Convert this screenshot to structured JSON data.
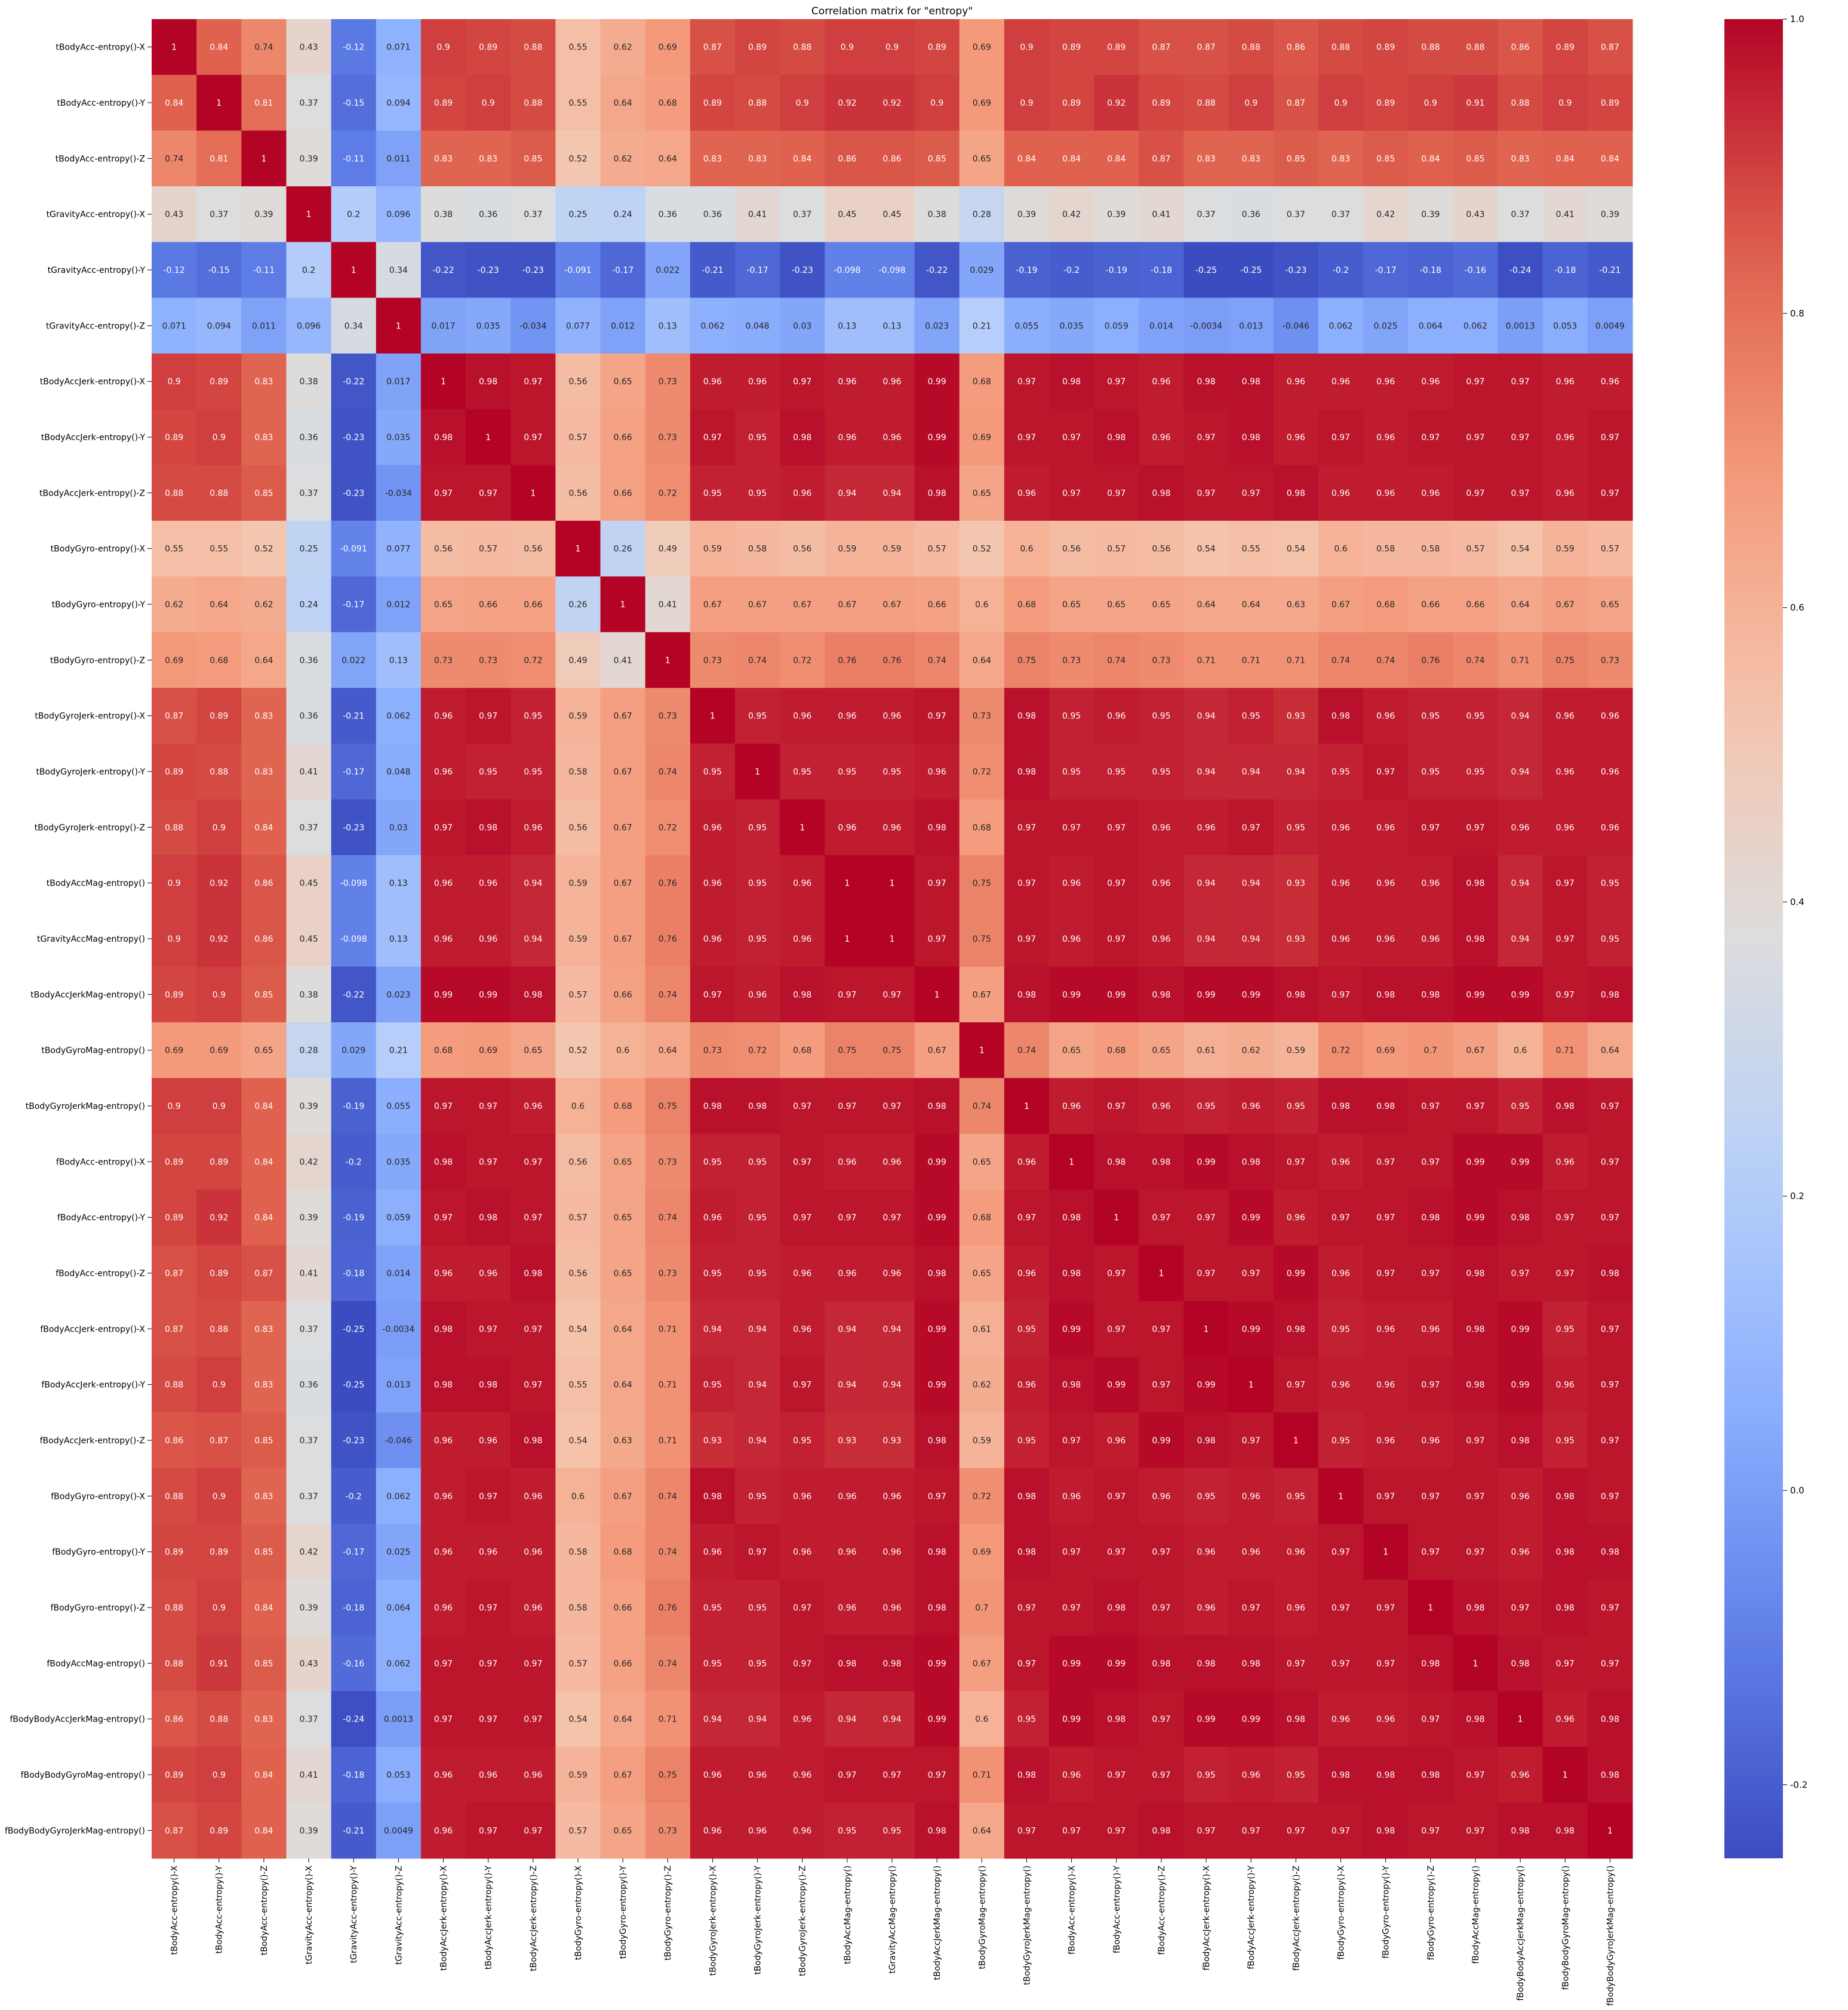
{
  "chart_data": {
    "type": "heatmap",
    "title": "Correlation matrix for \"entropy\"",
    "xlabel": "",
    "ylabel": "",
    "colormap": "coolwarm",
    "vmin": -0.25,
    "vmax": 1.0,
    "colorbar_ticks": [
      -0.2,
      0.0,
      0.2,
      0.4,
      0.6,
      0.8,
      1.0
    ],
    "labels": [
      "tBodyAcc-entropy()-X",
      "tBodyAcc-entropy()-Y",
      "tBodyAcc-entropy()-Z",
      "tGravityAcc-entropy()-X",
      "tGravityAcc-entropy()-Y",
      "tGravityAcc-entropy()-Z",
      "tBodyAccJerk-entropy()-X",
      "tBodyAccJerk-entropy()-Y",
      "tBodyAccJerk-entropy()-Z",
      "tBodyGyro-entropy()-X",
      "tBodyGyro-entropy()-Y",
      "tBodyGyro-entropy()-Z",
      "tBodyGyroJerk-entropy()-X",
      "tBodyGyroJerk-entropy()-Y",
      "tBodyGyroJerk-entropy()-Z",
      "tBodyAccMag-entropy()",
      "tGravityAccMag-entropy()",
      "tBodyAccJerkMag-entropy()",
      "tBodyGyroMag-entropy()",
      "tBodyGyroJerkMag-entropy()",
      "fBodyAcc-entropy()-X",
      "fBodyAcc-entropy()-Y",
      "fBodyAcc-entropy()-Z",
      "fBodyAccJerk-entropy()-X",
      "fBodyAccJerk-entropy()-Y",
      "fBodyAccJerk-entropy()-Z",
      "fBodyGyro-entropy()-X",
      "fBodyGyro-entropy()-Y",
      "fBodyGyro-entropy()-Z",
      "fBodyAccMag-entropy()",
      "fBodyBodyAccJerkMag-entropy()",
      "fBodyBodyGyroMag-entropy()",
      "fBodyBodyGyroJerkMag-entropy()"
    ],
    "matrix": [
      [
        "1",
        "0.84",
        "0.74",
        "0.43",
        "-0.12",
        "0.071",
        "0.9",
        "0.89",
        "0.88",
        "0.55",
        "0.62",
        "0.69",
        "0.87",
        "0.89",
        "0.88",
        "0.9",
        "0.9",
        "0.89",
        "0.69",
        "0.9",
        "0.89",
        "0.89",
        "0.87",
        "0.87",
        "0.88",
        "0.86",
        "0.88",
        "0.89",
        "0.88",
        "0.88",
        "0.86",
        "0.89",
        "0.87"
      ],
      [
        "0.84",
        "1",
        "0.81",
        "0.37",
        "-0.15",
        "0.094",
        "0.89",
        "0.9",
        "0.88",
        "0.55",
        "0.64",
        "0.68",
        "0.89",
        "0.88",
        "0.9",
        "0.92",
        "0.92",
        "0.9",
        "0.69",
        "0.9",
        "0.89",
        "0.92",
        "0.89",
        "0.88",
        "0.9",
        "0.87",
        "0.9",
        "0.89",
        "0.9",
        "0.91",
        "0.88",
        "0.9",
        "0.89"
      ],
      [
        "0.74",
        "0.81",
        "1",
        "0.39",
        "-0.11",
        "0.011",
        "0.83",
        "0.83",
        "0.85",
        "0.52",
        "0.62",
        "0.64",
        "0.83",
        "0.83",
        "0.84",
        "0.86",
        "0.86",
        "0.85",
        "0.65",
        "0.84",
        "0.84",
        "0.84",
        "0.87",
        "0.83",
        "0.83",
        "0.85",
        "0.83",
        "0.85",
        "0.84",
        "0.85",
        "0.83",
        "0.84",
        "0.84"
      ],
      [
        "0.43",
        "0.37",
        "0.39",
        "1",
        "0.2",
        "0.096",
        "0.38",
        "0.36",
        "0.37",
        "0.25",
        "0.24",
        "0.36",
        "0.36",
        "0.41",
        "0.37",
        "0.45",
        "0.45",
        "0.38",
        "0.28",
        "0.39",
        "0.42",
        "0.39",
        "0.41",
        "0.37",
        "0.36",
        "0.37",
        "0.37",
        "0.42",
        "0.39",
        "0.43",
        "0.37",
        "0.41",
        "0.39"
      ],
      [
        "-0.12",
        "-0.15",
        "-0.11",
        "0.2",
        "1",
        "0.34",
        "-0.22",
        "-0.23",
        "-0.23",
        "-0.091",
        "-0.17",
        "0.022",
        "-0.21",
        "-0.17",
        "-0.23",
        "-0.098",
        "-0.098",
        "-0.22",
        "0.029",
        "-0.19",
        "-0.2",
        "-0.19",
        "-0.18",
        "-0.25",
        "-0.25",
        "-0.23",
        "-0.2",
        "-0.17",
        "-0.18",
        "-0.16",
        "-0.24",
        "-0.18",
        "-0.21"
      ],
      [
        "0.071",
        "0.094",
        "0.011",
        "0.096",
        "0.34",
        "1",
        "0.017",
        "0.035",
        "-0.034",
        "0.077",
        "0.012",
        "0.13",
        "0.062",
        "0.048",
        "0.03",
        "0.13",
        "0.13",
        "0.023",
        "0.21",
        "0.055",
        "0.035",
        "0.059",
        "0.014",
        "-0.0034",
        "0.013",
        "-0.046",
        "0.062",
        "0.025",
        "0.064",
        "0.062",
        "0.0013",
        "0.053",
        "0.0049"
      ],
      [
        "0.9",
        "0.89",
        "0.83",
        "0.38",
        "-0.22",
        "0.017",
        "1",
        "0.98",
        "0.97",
        "0.56",
        "0.65",
        "0.73",
        "0.96",
        "0.96",
        "0.97",
        "0.96",
        "0.96",
        "0.99",
        "0.68",
        "0.97",
        "0.98",
        "0.97",
        "0.96",
        "0.98",
        "0.98",
        "0.96",
        "0.96",
        "0.96",
        "0.96",
        "0.97",
        "0.97",
        "0.96",
        "0.96"
      ],
      [
        "0.89",
        "0.9",
        "0.83",
        "0.36",
        "-0.23",
        "0.035",
        "0.98",
        "1",
        "0.97",
        "0.57",
        "0.66",
        "0.73",
        "0.97",
        "0.95",
        "0.98",
        "0.96",
        "0.96",
        "0.99",
        "0.69",
        "0.97",
        "0.97",
        "0.98",
        "0.96",
        "0.97",
        "0.98",
        "0.96",
        "0.97",
        "0.96",
        "0.97",
        "0.97",
        "0.97",
        "0.96",
        "0.97"
      ],
      [
        "0.88",
        "0.88",
        "0.85",
        "0.37",
        "-0.23",
        "-0.034",
        "0.97",
        "0.97",
        "1",
        "0.56",
        "0.66",
        "0.72",
        "0.95",
        "0.95",
        "0.96",
        "0.94",
        "0.94",
        "0.98",
        "0.65",
        "0.96",
        "0.97",
        "0.97",
        "0.98",
        "0.97",
        "0.97",
        "0.98",
        "0.96",
        "0.96",
        "0.96",
        "0.97",
        "0.97",
        "0.96",
        "0.97"
      ],
      [
        "0.55",
        "0.55",
        "0.52",
        "0.25",
        "-0.091",
        "0.077",
        "0.56",
        "0.57",
        "0.56",
        "1",
        "0.26",
        "0.49",
        "0.59",
        "0.58",
        "0.56",
        "0.59",
        "0.59",
        "0.57",
        "0.52",
        "0.6",
        "0.56",
        "0.57",
        "0.56",
        "0.54",
        "0.55",
        "0.54",
        "0.6",
        "0.58",
        "0.58",
        "0.57",
        "0.54",
        "0.59",
        "0.57"
      ],
      [
        "0.62",
        "0.64",
        "0.62",
        "0.24",
        "-0.17",
        "0.012",
        "0.65",
        "0.66",
        "0.66",
        "0.26",
        "1",
        "0.41",
        "0.67",
        "0.67",
        "0.67",
        "0.67",
        "0.67",
        "0.66",
        "0.6",
        "0.68",
        "0.65",
        "0.65",
        "0.65",
        "0.64",
        "0.64",
        "0.63",
        "0.67",
        "0.68",
        "0.66",
        "0.66",
        "0.64",
        "0.67",
        "0.65"
      ],
      [
        "0.69",
        "0.68",
        "0.64",
        "0.36",
        "0.022",
        "0.13",
        "0.73",
        "0.73",
        "0.72",
        "0.49",
        "0.41",
        "1",
        "0.73",
        "0.74",
        "0.72",
        "0.76",
        "0.76",
        "0.74",
        "0.64",
        "0.75",
        "0.73",
        "0.74",
        "0.73",
        "0.71",
        "0.71",
        "0.71",
        "0.74",
        "0.74",
        "0.76",
        "0.74",
        "0.71",
        "0.75",
        "0.73"
      ],
      [
        "0.87",
        "0.89",
        "0.83",
        "0.36",
        "-0.21",
        "0.062",
        "0.96",
        "0.97",
        "0.95",
        "0.59",
        "0.67",
        "0.73",
        "1",
        "0.95",
        "0.96",
        "0.96",
        "0.96",
        "0.97",
        "0.73",
        "0.98",
        "0.95",
        "0.96",
        "0.95",
        "0.94",
        "0.95",
        "0.93",
        "0.98",
        "0.96",
        "0.95",
        "0.95",
        "0.94",
        "0.96",
        "0.96"
      ],
      [
        "0.89",
        "0.88",
        "0.83",
        "0.41",
        "-0.17",
        "0.048",
        "0.96",
        "0.95",
        "0.95",
        "0.58",
        "0.67",
        "0.74",
        "0.95",
        "1",
        "0.95",
        "0.95",
        "0.95",
        "0.96",
        "0.72",
        "0.98",
        "0.95",
        "0.95",
        "0.95",
        "0.94",
        "0.94",
        "0.94",
        "0.95",
        "0.97",
        "0.95",
        "0.95",
        "0.94",
        "0.96",
        "0.96"
      ],
      [
        "0.88",
        "0.9",
        "0.84",
        "0.37",
        "-0.23",
        "0.03",
        "0.97",
        "0.98",
        "0.96",
        "0.56",
        "0.67",
        "0.72",
        "0.96",
        "0.95",
        "1",
        "0.96",
        "0.96",
        "0.98",
        "0.68",
        "0.97",
        "0.97",
        "0.97",
        "0.96",
        "0.96",
        "0.97",
        "0.95",
        "0.96",
        "0.96",
        "0.97",
        "0.97",
        "0.96",
        "0.96",
        "0.96"
      ],
      [
        "0.9",
        "0.92",
        "0.86",
        "0.45",
        "-0.098",
        "0.13",
        "0.96",
        "0.96",
        "0.94",
        "0.59",
        "0.67",
        "0.76",
        "0.96",
        "0.95",
        "0.96",
        "1",
        "1",
        "0.97",
        "0.75",
        "0.97",
        "0.96",
        "0.97",
        "0.96",
        "0.94",
        "0.94",
        "0.93",
        "0.96",
        "0.96",
        "0.96",
        "0.98",
        "0.94",
        "0.97",
        "0.95"
      ],
      [
        "0.9",
        "0.92",
        "0.86",
        "0.45",
        "-0.098",
        "0.13",
        "0.96",
        "0.96",
        "0.94",
        "0.59",
        "0.67",
        "0.76",
        "0.96",
        "0.95",
        "0.96",
        "1",
        "1",
        "0.97",
        "0.75",
        "0.97",
        "0.96",
        "0.97",
        "0.96",
        "0.94",
        "0.94",
        "0.93",
        "0.96",
        "0.96",
        "0.96",
        "0.98",
        "0.94",
        "0.97",
        "0.95"
      ],
      [
        "0.89",
        "0.9",
        "0.85",
        "0.38",
        "-0.22",
        "0.023",
        "0.99",
        "0.99",
        "0.98",
        "0.57",
        "0.66",
        "0.74",
        "0.97",
        "0.96",
        "0.98",
        "0.97",
        "0.97",
        "1",
        "0.67",
        "0.98",
        "0.99",
        "0.99",
        "0.98",
        "0.99",
        "0.99",
        "0.98",
        "0.97",
        "0.98",
        "0.98",
        "0.99",
        "0.99",
        "0.97",
        "0.98"
      ],
      [
        "0.69",
        "0.69",
        "0.65",
        "0.28",
        "0.029",
        "0.21",
        "0.68",
        "0.69",
        "0.65",
        "0.52",
        "0.6",
        "0.64",
        "0.73",
        "0.72",
        "0.68",
        "0.75",
        "0.75",
        "0.67",
        "1",
        "0.74",
        "0.65",
        "0.68",
        "0.65",
        "0.61",
        "0.62",
        "0.59",
        "0.72",
        "0.69",
        "0.7",
        "0.67",
        "0.6",
        "0.71",
        "0.64"
      ],
      [
        "0.9",
        "0.9",
        "0.84",
        "0.39",
        "-0.19",
        "0.055",
        "0.97",
        "0.97",
        "0.96",
        "0.6",
        "0.68",
        "0.75",
        "0.98",
        "0.98",
        "0.97",
        "0.97",
        "0.97",
        "0.98",
        "0.74",
        "1",
        "0.96",
        "0.97",
        "0.96",
        "0.95",
        "0.96",
        "0.95",
        "0.98",
        "0.98",
        "0.97",
        "0.97",
        "0.95",
        "0.98",
        "0.97"
      ],
      [
        "0.89",
        "0.89",
        "0.84",
        "0.42",
        "-0.2",
        "0.035",
        "0.98",
        "0.97",
        "0.97",
        "0.56",
        "0.65",
        "0.73",
        "0.95",
        "0.95",
        "0.97",
        "0.96",
        "0.96",
        "0.99",
        "0.65",
        "0.96",
        "1",
        "0.98",
        "0.98",
        "0.99",
        "0.98",
        "0.97",
        "0.96",
        "0.97",
        "0.97",
        "0.99",
        "0.99",
        "0.96",
        "0.97"
      ],
      [
        "0.89",
        "0.92",
        "0.84",
        "0.39",
        "-0.19",
        "0.059",
        "0.97",
        "0.98",
        "0.97",
        "0.57",
        "0.65",
        "0.74",
        "0.96",
        "0.95",
        "0.97",
        "0.97",
        "0.97",
        "0.99",
        "0.68",
        "0.97",
        "0.98",
        "1",
        "0.97",
        "0.97",
        "0.99",
        "0.96",
        "0.97",
        "0.97",
        "0.98",
        "0.99",
        "0.98",
        "0.97",
        "0.97"
      ],
      [
        "0.87",
        "0.89",
        "0.87",
        "0.41",
        "-0.18",
        "0.014",
        "0.96",
        "0.96",
        "0.98",
        "0.56",
        "0.65",
        "0.73",
        "0.95",
        "0.95",
        "0.96",
        "0.96",
        "0.96",
        "0.98",
        "0.65",
        "0.96",
        "0.98",
        "0.97",
        "1",
        "0.97",
        "0.97",
        "0.99",
        "0.96",
        "0.97",
        "0.97",
        "0.98",
        "0.97",
        "0.97",
        "0.98"
      ],
      [
        "0.87",
        "0.88",
        "0.83",
        "0.37",
        "-0.25",
        "-0.0034",
        "0.98",
        "0.97",
        "0.97",
        "0.54",
        "0.64",
        "0.71",
        "0.94",
        "0.94",
        "0.96",
        "0.94",
        "0.94",
        "0.99",
        "0.61",
        "0.95",
        "0.99",
        "0.97",
        "0.97",
        "1",
        "0.99",
        "0.98",
        "0.95",
        "0.96",
        "0.96",
        "0.98",
        "0.99",
        "0.95",
        "0.97"
      ],
      [
        "0.88",
        "0.9",
        "0.83",
        "0.36",
        "-0.25",
        "0.013",
        "0.98",
        "0.98",
        "0.97",
        "0.55",
        "0.64",
        "0.71",
        "0.95",
        "0.94",
        "0.97",
        "0.94",
        "0.94",
        "0.99",
        "0.62",
        "0.96",
        "0.98",
        "0.99",
        "0.97",
        "0.99",
        "1",
        "0.97",
        "0.96",
        "0.96",
        "0.97",
        "0.98",
        "0.99",
        "0.96",
        "0.97"
      ],
      [
        "0.86",
        "0.87",
        "0.85",
        "0.37",
        "-0.23",
        "-0.046",
        "0.96",
        "0.96",
        "0.98",
        "0.54",
        "0.63",
        "0.71",
        "0.93",
        "0.94",
        "0.95",
        "0.93",
        "0.93",
        "0.98",
        "0.59",
        "0.95",
        "0.97",
        "0.96",
        "0.99",
        "0.98",
        "0.97",
        "1",
        "0.95",
        "0.96",
        "0.96",
        "0.97",
        "0.98",
        "0.95",
        "0.97"
      ],
      [
        "0.88",
        "0.9",
        "0.83",
        "0.37",
        "-0.2",
        "0.062",
        "0.96",
        "0.97",
        "0.96",
        "0.6",
        "0.67",
        "0.74",
        "0.98",
        "0.95",
        "0.96",
        "0.96",
        "0.96",
        "0.97",
        "0.72",
        "0.98",
        "0.96",
        "0.97",
        "0.96",
        "0.95",
        "0.96",
        "0.95",
        "1",
        "0.97",
        "0.97",
        "0.97",
        "0.96",
        "0.98",
        "0.97"
      ],
      [
        "0.89",
        "0.89",
        "0.85",
        "0.42",
        "-0.17",
        "0.025",
        "0.96",
        "0.96",
        "0.96",
        "0.58",
        "0.68",
        "0.74",
        "0.96",
        "0.97",
        "0.96",
        "0.96",
        "0.96",
        "0.98",
        "0.69",
        "0.98",
        "0.97",
        "0.97",
        "0.97",
        "0.96",
        "0.96",
        "0.96",
        "0.97",
        "1",
        "0.97",
        "0.97",
        "0.96",
        "0.98",
        "0.98"
      ],
      [
        "0.88",
        "0.9",
        "0.84",
        "0.39",
        "-0.18",
        "0.064",
        "0.96",
        "0.97",
        "0.96",
        "0.58",
        "0.66",
        "0.76",
        "0.95",
        "0.95",
        "0.97",
        "0.96",
        "0.96",
        "0.98",
        "0.7",
        "0.97",
        "0.97",
        "0.98",
        "0.97",
        "0.96",
        "0.97",
        "0.96",
        "0.97",
        "0.97",
        "1",
        "0.98",
        "0.97",
        "0.98",
        "0.97"
      ],
      [
        "0.88",
        "0.91",
        "0.85",
        "0.43",
        "-0.16",
        "0.062",
        "0.97",
        "0.97",
        "0.97",
        "0.57",
        "0.66",
        "0.74",
        "0.95",
        "0.95",
        "0.97",
        "0.98",
        "0.98",
        "0.99",
        "0.67",
        "0.97",
        "0.99",
        "0.99",
        "0.98",
        "0.98",
        "0.98",
        "0.97",
        "0.97",
        "0.97",
        "0.98",
        "1",
        "0.98",
        "0.97",
        "0.97"
      ],
      [
        "0.86",
        "0.88",
        "0.83",
        "0.37",
        "-0.24",
        "0.0013",
        "0.97",
        "0.97",
        "0.97",
        "0.54",
        "0.64",
        "0.71",
        "0.94",
        "0.94",
        "0.96",
        "0.94",
        "0.94",
        "0.99",
        "0.6",
        "0.95",
        "0.99",
        "0.98",
        "0.97",
        "0.99",
        "0.99",
        "0.98",
        "0.96",
        "0.96",
        "0.97",
        "0.98",
        "1",
        "0.96",
        "0.98"
      ],
      [
        "0.89",
        "0.9",
        "0.84",
        "0.41",
        "-0.18",
        "0.053",
        "0.96",
        "0.96",
        "0.96",
        "0.59",
        "0.67",
        "0.75",
        "0.96",
        "0.96",
        "0.96",
        "0.97",
        "0.97",
        "0.97",
        "0.71",
        "0.98",
        "0.96",
        "0.97",
        "0.97",
        "0.95",
        "0.96",
        "0.95",
        "0.98",
        "0.98",
        "0.98",
        "0.97",
        "0.96",
        "1",
        "0.98"
      ],
      [
        "0.87",
        "0.89",
        "0.84",
        "0.39",
        "-0.21",
        "0.0049",
        "0.96",
        "0.97",
        "0.97",
        "0.57",
        "0.65",
        "0.73",
        "0.96",
        "0.96",
        "0.96",
        "0.95",
        "0.95",
        "0.98",
        "0.64",
        "0.97",
        "0.97",
        "0.97",
        "0.98",
        "0.97",
        "0.97",
        "0.97",
        "0.97",
        "0.98",
        "0.97",
        "0.97",
        "0.98",
        "0.98",
        "1"
      ]
    ]
  }
}
